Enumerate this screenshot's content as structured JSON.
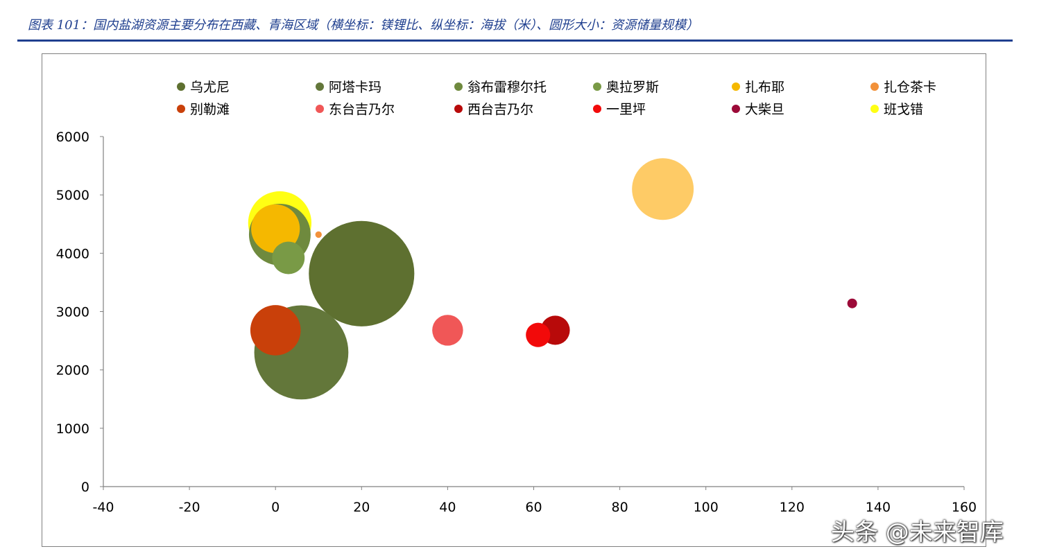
{
  "title": "图表 101：国内盐湖资源主要分布在西藏、青海区域（横坐标：镁锂比、纵坐标：海拔（米）、圆形大小：资源储量规模）",
  "watermark": "头条 @未来智库",
  "chart_data": {
    "type": "bubble",
    "title": "",
    "xlabel": "",
    "ylabel": "",
    "xlim": [
      -40,
      160
    ],
    "ylim": [
      0,
      6000
    ],
    "xticks": [
      -40,
      -20,
      0,
      20,
      40,
      60,
      80,
      100,
      120,
      140,
      160
    ],
    "yticks": [
      0,
      1000,
      2000,
      3000,
      4000,
      5000,
      6000
    ],
    "grid": false,
    "legend_position": "top",
    "series": [
      {
        "name": "乌尤尼",
        "color": "#5e7030",
        "x": 20,
        "y": 3650,
        "size": 65
      },
      {
        "name": "阿塔卡玛",
        "color": "#63773a",
        "x": 6,
        "y": 2300,
        "size": 58
      },
      {
        "name": "翁布雷穆尔托",
        "color": "#6f8a3e",
        "x": 1,
        "y": 4320,
        "size": 38
      },
      {
        "name": "奥拉罗斯",
        "color": "#799a46",
        "x": 3,
        "y": 3920,
        "size": 20
      },
      {
        "name": "扎布耶",
        "color": "#f5b800",
        "x": 0,
        "y": 4420,
        "size": 30
      },
      {
        "name": "扎仓茶卡",
        "color": "#f2913a",
        "x": 10,
        "y": 4320,
        "size": 4
      },
      {
        "name": "别勒滩",
        "color": "#c9400a",
        "x": 0,
        "y": 2680,
        "size": 31
      },
      {
        "name": "东台吉乃尔",
        "color": "#f05757",
        "x": 40,
        "y": 2680,
        "size": 19
      },
      {
        "name": "西台吉乃尔",
        "color": "#b80a0a",
        "x": 65,
        "y": 2680,
        "size": 18
      },
      {
        "name": "一里坪",
        "color": "#f20a0a",
        "x": 61,
        "y": 2600,
        "size": 15
      },
      {
        "name": "大柴旦",
        "color": "#9c0a38",
        "x": 134,
        "y": 3140,
        "size": 6
      },
      {
        "name": "班戈错",
        "color": "#ffff14",
        "x": 1,
        "y": 4520,
        "size": 39
      },
      {
        "name": "",
        "color": "#fecb66",
        "x": 90,
        "y": 5100,
        "size": 38
      }
    ]
  }
}
